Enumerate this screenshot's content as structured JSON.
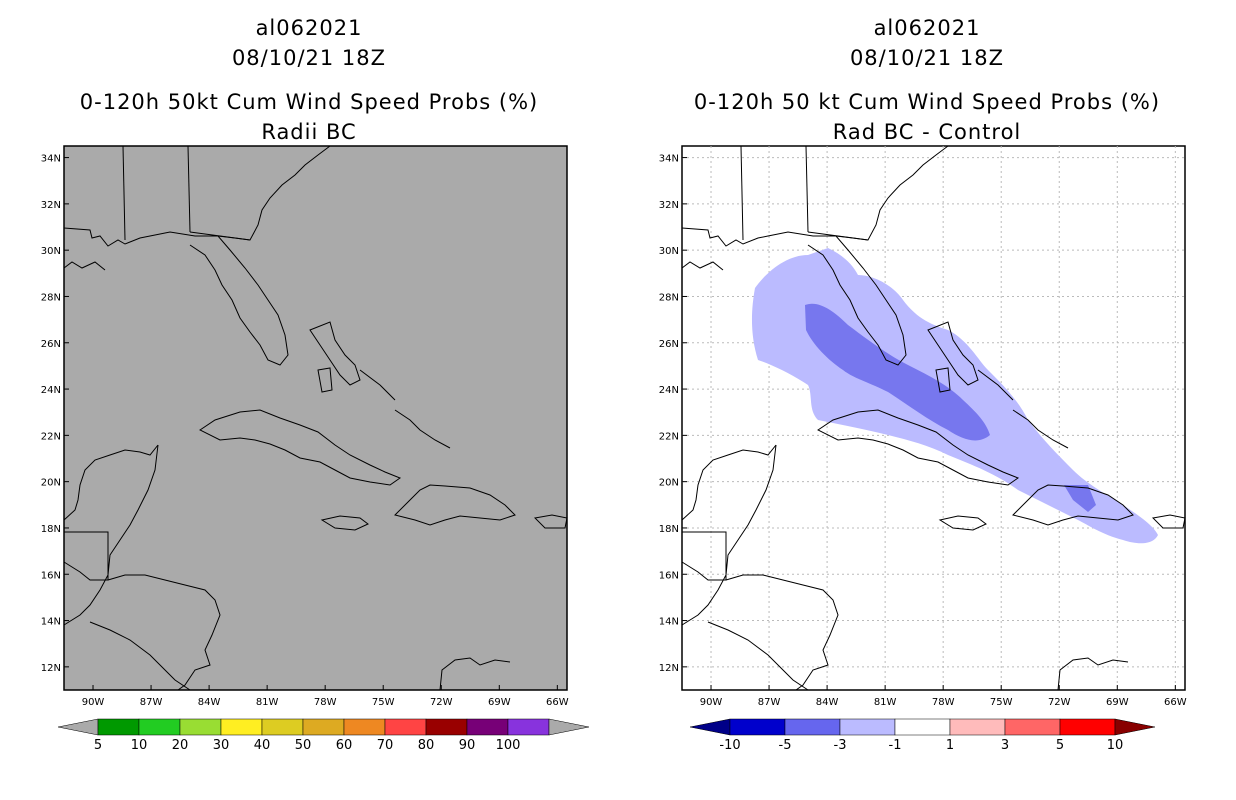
{
  "panels": [
    {
      "storm_id": "al062021",
      "datetime": "08/10/21 18Z",
      "product": "0-120h 50kt Cum Wind Speed Probs (%)",
      "subtitle": "Radii BC",
      "map_background": "#aaaaaa",
      "colorbar": {
        "labels": [
          "5",
          "10",
          "20",
          "30",
          "40",
          "50",
          "60",
          "70",
          "80",
          "90",
          "100"
        ],
        "colors": [
          "#009900",
          "#22cc22",
          "#99dd33",
          "#ffee22",
          "#ddcc22",
          "#ddaa22",
          "#ee8822",
          "#ff4444",
          "#990000",
          "#770077",
          "#8833dd"
        ],
        "end_color": "#aaaaaa"
      }
    },
    {
      "storm_id": "al062021",
      "datetime": "08/10/21 18Z",
      "product": "0-120h 50 kt Cum Wind Speed Probs (%)",
      "subtitle": "Rad BC - Control",
      "map_background": "#ffffff",
      "colorbar": {
        "labels": [
          "-10",
          "-5",
          "-3",
          "-1",
          "1",
          "3",
          "5",
          "10"
        ],
        "colors": [
          "#0000cc",
          "#6666ee",
          "#bbbbff",
          "#ffffff",
          "#ffbbbb",
          "#ff6666",
          "#ff0000"
        ],
        "left_end_color": "#000088",
        "right_end_color": "#880000"
      }
    }
  ],
  "axes": {
    "lat_labels": [
      "34N",
      "32N",
      "30N",
      "28N",
      "26N",
      "24N",
      "22N",
      "20N",
      "18N",
      "16N",
      "14N",
      "12N"
    ],
    "lon_labels": [
      "90W",
      "87W",
      "84W",
      "81W",
      "78W",
      "75W",
      "72W",
      "69W",
      "66W"
    ]
  }
}
